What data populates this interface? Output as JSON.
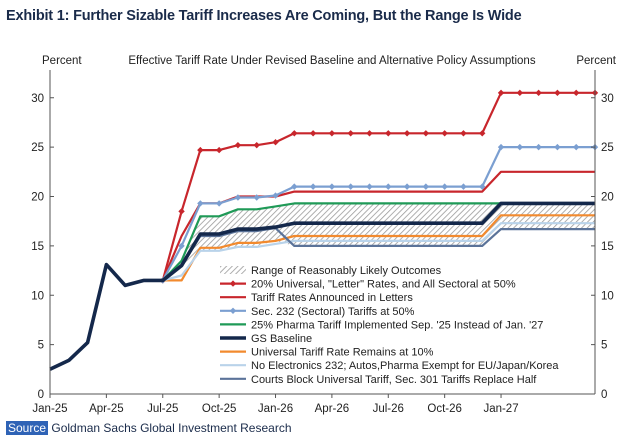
{
  "exhibit_title": "Exhibit 1: Further Sizable Tariff Increases Are Coming, But the Range Is Wide",
  "source_label": "Source",
  "source_text": "Goldman Sachs Global Investment Research",
  "chart_data": {
    "type": "line",
    "title": "Effective  Tariff  Rate  Under  Revised  Baseline  and  Alternative  Policy  Assumptions",
    "ylabel_left": "Percent",
    "ylabel_right": "Percent",
    "ylim": [
      0,
      32
    ],
    "yticks": [
      0,
      5,
      10,
      15,
      20,
      25,
      30
    ],
    "xlim": [
      "2025-01",
      "2027-06"
    ],
    "xticks": [
      "Jan-25",
      "Apr-25",
      "Jul-25",
      "Oct-25",
      "Jan-26",
      "Apr-26",
      "Jul-26",
      "Oct-26",
      "Jan-27"
    ],
    "grid": false,
    "legend_position": "center-right",
    "range_band": {
      "name": "Range of Reasonably Likely Outcomes",
      "x": [
        "2025-07",
        "2025-08",
        "2025-09",
        "2025-10",
        "2025-11",
        "2025-12",
        "2026-01",
        "2026-02",
        "2026-12",
        "2027-01",
        "2027-06"
      ],
      "lower": [
        11.5,
        13.0,
        14.5,
        14.5,
        14.8,
        15.0,
        15.5,
        15.0,
        15.0,
        16.7,
        16.7
      ],
      "upper": [
        11.5,
        13.5,
        18.0,
        18.0,
        18.7,
        18.7,
        19.0,
        19.3,
        19.3,
        19.3,
        19.3
      ]
    },
    "series": [
      {
        "name": "20% Universal, \"Letter\" Rates, and All Sectoral at 50%",
        "color": "#c8262c",
        "marker": "diamond",
        "x": [
          "2025-07",
          "2025-08",
          "2025-09",
          "2025-10",
          "2025-11",
          "2025-12",
          "2026-01",
          "2026-02",
          "2026-03",
          "2026-04",
          "2026-05",
          "2026-06",
          "2026-07",
          "2026-08",
          "2026-09",
          "2026-10",
          "2026-11",
          "2026-12",
          "2027-01",
          "2027-02",
          "2027-03",
          "2027-04",
          "2027-05",
          "2027-06"
        ],
        "y": [
          11.5,
          18.5,
          24.7,
          24.7,
          25.2,
          25.2,
          25.5,
          26.4,
          26.4,
          26.4,
          26.4,
          26.4,
          26.4,
          26.4,
          26.4,
          26.4,
          26.4,
          26.4,
          30.5,
          30.5,
          30.5,
          30.5,
          30.5,
          30.5
        ]
      },
      {
        "name": "Tariff Rates Announced in Letters",
        "color": "#c8262c",
        "marker": "none",
        "x": [
          "2025-07",
          "2025-08",
          "2025-09",
          "2025-10",
          "2025-11",
          "2025-12",
          "2026-01",
          "2026-02",
          "2026-12",
          "2027-01",
          "2027-06"
        ],
        "y": [
          11.5,
          16.0,
          19.3,
          19.3,
          20.0,
          20.0,
          20.0,
          20.5,
          20.5,
          22.5,
          22.5
        ]
      },
      {
        "name": "Sec. 232 (Sectoral) Tariffs at 50%",
        "color": "#7b9fd1",
        "marker": "diamond",
        "x": [
          "2025-07",
          "2025-08",
          "2025-09",
          "2025-10",
          "2025-11",
          "2025-12",
          "2026-01",
          "2026-02",
          "2026-03",
          "2026-04",
          "2026-05",
          "2026-06",
          "2026-07",
          "2026-08",
          "2026-09",
          "2026-10",
          "2026-11",
          "2026-12",
          "2027-01",
          "2027-02",
          "2027-03",
          "2027-04",
          "2027-05",
          "2027-06"
        ],
        "y": [
          11.5,
          15.0,
          19.3,
          19.3,
          19.9,
          19.9,
          20.1,
          21.0,
          21.0,
          21.0,
          21.0,
          21.0,
          21.0,
          21.0,
          21.0,
          21.0,
          21.0,
          21.0,
          25.0,
          25.0,
          25.0,
          25.0,
          25.0,
          25.0
        ]
      },
      {
        "name": "25% Pharma Tariff Implemented Sep. '25 Instead of Jan. '27",
        "color": "#1f9a57",
        "marker": "none",
        "x": [
          "2025-07",
          "2025-08",
          "2025-09",
          "2025-10",
          "2025-11",
          "2025-12",
          "2026-01",
          "2026-02",
          "2026-12",
          "2027-01",
          "2027-06"
        ],
        "y": [
          11.5,
          13.5,
          18.0,
          18.0,
          18.7,
          18.7,
          19.0,
          19.3,
          19.3,
          19.3,
          19.3
        ]
      },
      {
        "name": "GS Baseline",
        "color": "#14284b",
        "marker": "none",
        "bold": true,
        "x": [
          "2025-01",
          "2025-02",
          "2025-03",
          "2025-04",
          "2025-05",
          "2025-06",
          "2025-07",
          "2025-08",
          "2025-09",
          "2025-10",
          "2025-11",
          "2025-12",
          "2026-01",
          "2026-02",
          "2026-12",
          "2027-01",
          "2027-06"
        ],
        "y": [
          2.5,
          3.4,
          5.2,
          13.1,
          11.0,
          11.5,
          11.5,
          13.0,
          16.2,
          16.2,
          16.7,
          16.7,
          16.9,
          17.3,
          17.3,
          19.3,
          19.3
        ]
      },
      {
        "name": "Universal Tariff Rate Remains at 10%",
        "color": "#f28a2e",
        "marker": "none",
        "x": [
          "2025-07",
          "2025-08",
          "2025-09",
          "2025-10",
          "2025-11",
          "2025-12",
          "2026-01",
          "2026-02",
          "2026-12",
          "2027-01",
          "2027-06"
        ],
        "y": [
          11.5,
          11.5,
          14.8,
          14.8,
          15.3,
          15.3,
          15.5,
          16.0,
          16.0,
          18.1,
          18.1
        ]
      },
      {
        "name": "No Electronics 232; Autos,Pharma Exempt for EU/Japan/Korea",
        "color": "#b9d3ea",
        "marker": "none",
        "x": [
          "2025-07",
          "2025-08",
          "2025-09",
          "2025-10",
          "2025-11",
          "2025-12",
          "2026-01",
          "2026-02",
          "2026-12",
          "2027-01",
          "2027-06"
        ],
        "y": [
          11.5,
          12.0,
          14.5,
          14.5,
          14.9,
          14.9,
          15.2,
          15.5,
          15.5,
          17.3,
          17.3
        ]
      },
      {
        "name": "Courts Block Universal Tariff, Sec. 301 Tariffs Replace Half",
        "color": "#5b7399",
        "marker": "none",
        "x": [
          "2025-07",
          "2025-08",
          "2025-09",
          "2025-10",
          "2025-11",
          "2025-12",
          "2026-01",
          "2026-02",
          "2026-12",
          "2027-01",
          "2027-06"
        ],
        "y": [
          11.5,
          13.0,
          16.0,
          16.0,
          16.5,
          16.5,
          16.8,
          15.0,
          15.0,
          16.7,
          16.7
        ]
      }
    ]
  }
}
